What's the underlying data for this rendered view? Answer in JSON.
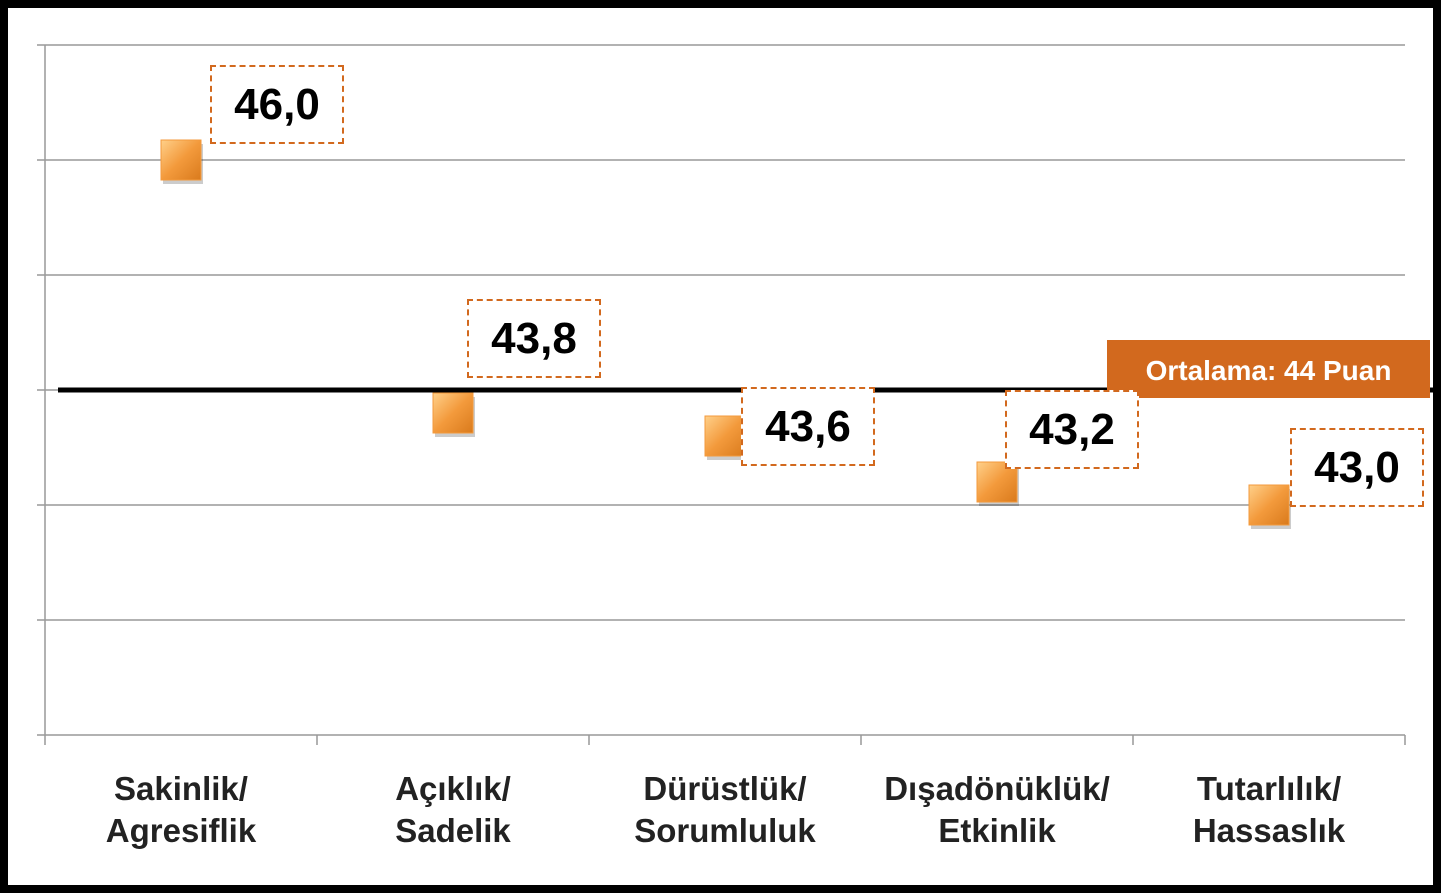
{
  "chart_data": {
    "type": "scatter",
    "categories": [
      "Sakinlik/\nAgresiflik",
      "Açıklık/\nSadelik",
      "Dürüstlük/\nSorumluluk",
      "Dışadönüklük/\nEtkinlik",
      "Tutarlılık/\nHassaslık"
    ],
    "values": [
      46.0,
      43.8,
      43.6,
      43.2,
      43.0
    ],
    "value_labels": [
      "46,0",
      "43,8",
      "43,6",
      "43,2",
      "43,0"
    ],
    "color": "#f39a3c",
    "ylim": [
      41,
      47
    ],
    "yticks": [
      41,
      42,
      43,
      44,
      45,
      46,
      47
    ],
    "grid": true,
    "reference_line": {
      "value": 44,
      "label": "Ortalama: 44 Puan"
    }
  }
}
